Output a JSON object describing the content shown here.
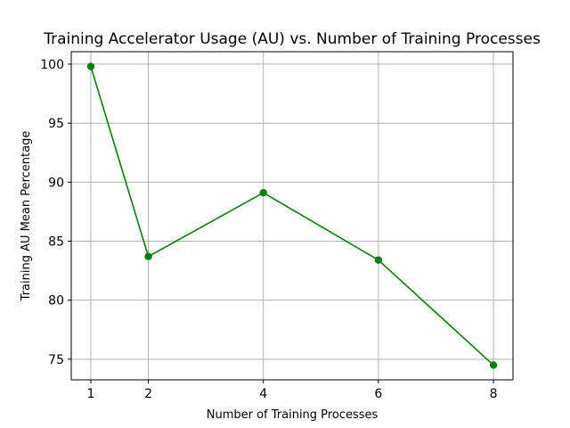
{
  "chart_data": {
    "type": "line",
    "title": "Training Accelerator Usage (AU) vs. Number of Training Processes",
    "xlabel": "Number of Training Processes",
    "ylabel": "Training AU Mean Percentage",
    "x": [
      1,
      2,
      4,
      6,
      8
    ],
    "xticks": [
      "1",
      "2",
      "4",
      "6",
      "8"
    ],
    "yticks": [
      "75",
      "80",
      "85",
      "90",
      "95",
      "100"
    ],
    "xlim": [
      0.66,
      8.34
    ],
    "ylim": [
      73.25,
      101.05
    ],
    "grid": true,
    "series": [
      {
        "values": [
          99.8,
          83.7,
          89.1,
          83.4,
          74.5
        ],
        "color": "#008000",
        "marker": "circle"
      }
    ]
  }
}
